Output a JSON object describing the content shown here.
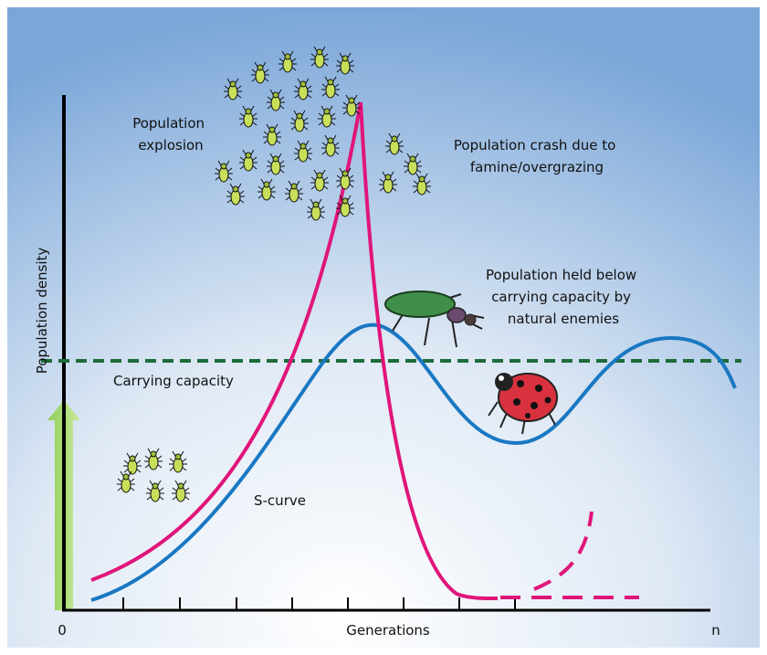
{
  "axis": {
    "y_label": "Population density",
    "x_label": "Generations",
    "x_start": "0",
    "x_end": "n"
  },
  "labels": {
    "explosion": [
      "Population",
      "explosion"
    ],
    "crash": [
      "Population crash due to",
      "famine/overgrazing"
    ],
    "held": [
      "Population held below",
      "carrying capacity by",
      "natural enemies"
    ],
    "carrying": "Carrying capacity",
    "s_curve": "S-curve"
  }
}
